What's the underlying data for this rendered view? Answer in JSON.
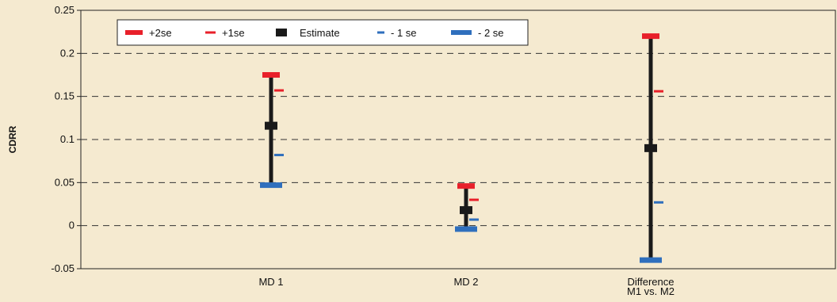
{
  "chart_data": {
    "type": "error-bar",
    "ylabel": "CDRR",
    "ylim": [
      -0.05,
      0.25
    ],
    "yticks": [
      -0.05,
      0,
      0.05,
      0.1,
      0.15,
      0.2,
      0.25
    ],
    "ytick_labels": [
      "-0.05",
      "0",
      "0.05",
      "0.1",
      "0.15",
      "0.2",
      "0.25"
    ],
    "grid": "horizontal-dashed",
    "legend": {
      "placement": "top-left",
      "entries": [
        {
          "key": "plus2se",
          "label": "+2se",
          "color": "#e8202a"
        },
        {
          "key": "plus1se",
          "label": "+1se",
          "color": "#e8202a"
        },
        {
          "key": "estimate",
          "label": "Estimate",
          "color": "#1a1a1a"
        },
        {
          "key": "minus1se",
          "label": "- 1 se",
          "color": "#2f6fbd"
        },
        {
          "key": "minus2se",
          "label": "- 2 se",
          "color": "#2f6fbd"
        }
      ]
    },
    "categories": [
      {
        "label_lines": [
          "MD 1"
        ],
        "plus2se": 0.175,
        "plus1se": 0.157,
        "estimate": 0.116,
        "minus1se": 0.082,
        "minus2se": 0.047
      },
      {
        "label_lines": [
          "MD 2"
        ],
        "plus2se": 0.046,
        "plus1se": 0.03,
        "estimate": 0.018,
        "minus1se": 0.007,
        "minus2se": -0.004
      },
      {
        "label_lines": [
          "Difference",
          "M1 vs. M2"
        ],
        "plus2se": 0.22,
        "plus1se": 0.156,
        "estimate": 0.09,
        "minus1se": 0.027,
        "minus2se": -0.04
      }
    ]
  }
}
